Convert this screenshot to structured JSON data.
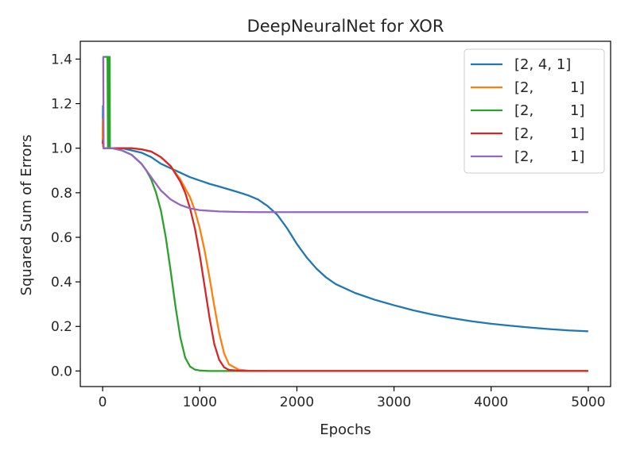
{
  "chart_data": {
    "type": "line",
    "title": "DeepNeuralNet for XOR",
    "xlabel": "Epochs",
    "ylabel": "Squared Sum of Errors",
    "xlim": [
      -230,
      5230
    ],
    "ylim": [
      -0.07,
      1.48
    ],
    "xticks": [
      0,
      1000,
      2000,
      3000,
      4000,
      5000
    ],
    "yticks": [
      0.0,
      0.2,
      0.4,
      0.6,
      0.8,
      1.0,
      1.2,
      1.4
    ],
    "xtick_labels": [
      "0",
      "1000",
      "2000",
      "3000",
      "4000",
      "5000"
    ],
    "ytick_labels": [
      "0.0",
      "0.2",
      "0.4",
      "0.6",
      "0.8",
      "1.0",
      "1.2",
      "1.4"
    ],
    "grid": false,
    "legend_position": "top-right",
    "series": [
      {
        "name": "[2, 4, 1]",
        "color": "#1f77b4",
        "x": [
          0,
          3,
          6,
          10,
          50,
          100,
          200,
          300,
          400,
          500,
          600,
          700,
          800,
          900,
          1000,
          1100,
          1200,
          1300,
          1400,
          1500,
          1600,
          1700,
          1800,
          1900,
          2000,
          2100,
          2200,
          2300,
          2400,
          2600,
          2800,
          3000,
          3200,
          3400,
          3600,
          3800,
          4000,
          4200,
          4400,
          4600,
          4800,
          5000
        ],
        "y": [
          1.02,
          1.19,
          1.03,
          1.0,
          1.0,
          1.0,
          1.0,
          0.99,
          0.98,
          0.96,
          0.93,
          0.91,
          0.89,
          0.87,
          0.855,
          0.84,
          0.828,
          0.815,
          0.802,
          0.788,
          0.77,
          0.74,
          0.7,
          0.64,
          0.57,
          0.51,
          0.46,
          0.42,
          0.39,
          0.35,
          0.32,
          0.295,
          0.272,
          0.253,
          0.237,
          0.223,
          0.212,
          0.203,
          0.195,
          0.188,
          0.182,
          0.178
        ]
      },
      {
        "name": "[2,        1]",
        "color": "#ff7f0e",
        "x": [
          0,
          3,
          6,
          10,
          50,
          100,
          200,
          300,
          400,
          500,
          600,
          700,
          800,
          900,
          950,
          1000,
          1050,
          1100,
          1150,
          1200,
          1250,
          1300,
          1400,
          1500,
          1700,
          2000,
          3000,
          4000,
          5000
        ],
        "y": [
          1.04,
          1.13,
          1.01,
          1.0,
          1.0,
          1.0,
          1.0,
          1.0,
          0.995,
          0.985,
          0.96,
          0.92,
          0.86,
          0.78,
          0.72,
          0.64,
          0.54,
          0.42,
          0.29,
          0.17,
          0.08,
          0.03,
          0.006,
          0.001,
          0.0,
          0.0,
          0.0,
          0.0,
          0.0
        ]
      },
      {
        "name": "[2,        1]",
        "color": "#2ca02c",
        "x": [
          0,
          3,
          6,
          10,
          20,
          30,
          40,
          50,
          55,
          60,
          65,
          70,
          72,
          75,
          80,
          100,
          200,
          300,
          400,
          450,
          500,
          550,
          600,
          650,
          700,
          750,
          800,
          850,
          900,
          950,
          1000,
          1100,
          1200,
          1500,
          2000,
          3000,
          4000,
          5000
        ],
        "y": [
          1.41,
          1.41,
          1.41,
          1.41,
          1.41,
          1.41,
          1.41,
          1.41,
          1.0,
          1.0,
          1.41,
          1.41,
          1.41,
          1.0,
          1.0,
          1.0,
          0.99,
          0.97,
          0.93,
          0.9,
          0.86,
          0.8,
          0.72,
          0.6,
          0.45,
          0.29,
          0.15,
          0.06,
          0.02,
          0.006,
          0.002,
          0.0,
          0.0,
          0.0,
          0.0,
          0.0,
          0.0,
          0.0
        ]
      },
      {
        "name": "[2,        1]",
        "color": "#d62728",
        "x": [
          0,
          3,
          6,
          10,
          50,
          100,
          200,
          300,
          400,
          500,
          600,
          700,
          800,
          850,
          900,
          950,
          1000,
          1050,
          1100,
          1150,
          1200,
          1250,
          1300,
          1400,
          1500,
          2000,
          3000,
          4000,
          5000
        ],
        "y": [
          1.02,
          1.03,
          1.01,
          1.0,
          1.0,
          1.0,
          1.0,
          1.0,
          0.995,
          0.985,
          0.96,
          0.92,
          0.85,
          0.8,
          0.73,
          0.64,
          0.52,
          0.38,
          0.24,
          0.12,
          0.05,
          0.017,
          0.005,
          0.001,
          0.0,
          0.0,
          0.0,
          0.0,
          0.0
        ]
      },
      {
        "name": "[2,        1]",
        "color": "#9467bd",
        "x": [
          0,
          3,
          6,
          10,
          50,
          100,
          200,
          300,
          400,
          500,
          600,
          700,
          800,
          900,
          1000,
          1200,
          1400,
          1600,
          2000,
          3000,
          4000,
          5000
        ],
        "y": [
          1.41,
          1.41,
          1.41,
          1.0,
          1.0,
          1.0,
          0.99,
          0.97,
          0.93,
          0.87,
          0.81,
          0.77,
          0.745,
          0.73,
          0.722,
          0.716,
          0.714,
          0.713,
          0.713,
          0.713,
          0.713,
          0.713
        ]
      }
    ]
  }
}
